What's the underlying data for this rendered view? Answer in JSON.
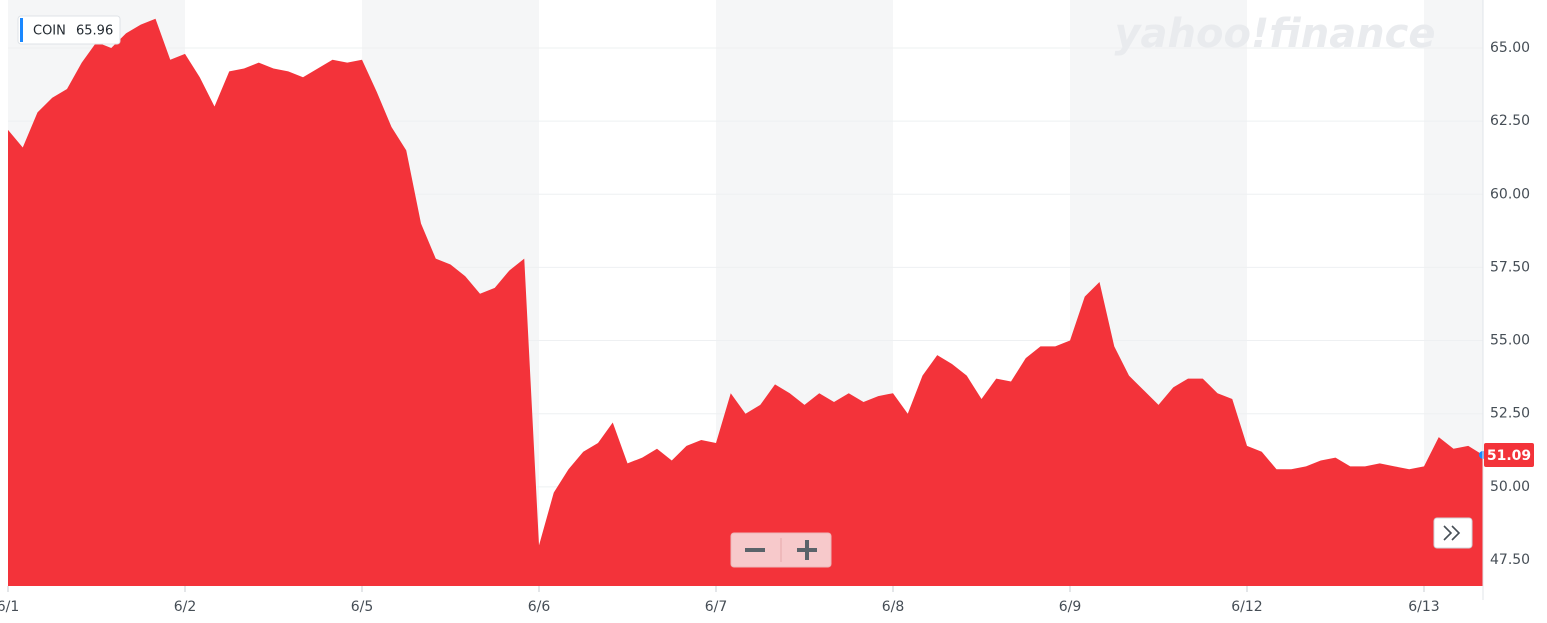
{
  "chart_data": {
    "type": "area",
    "legend": {
      "symbol": "COIN",
      "value": "65.96"
    },
    "watermark": "yahoo!finance",
    "last_price": "51.09",
    "color": "#f3333a",
    "series": [
      {
        "name": "COIN",
        "color": "#f3333a",
        "values": [
          62.2,
          61.6,
          62.8,
          63.3,
          63.6,
          64.5,
          65.2,
          65.0,
          65.5,
          65.8,
          66.0,
          64.6,
          64.8,
          64.0,
          63.0,
          64.2,
          64.3,
          64.5,
          64.3,
          64.2,
          64.0,
          64.3,
          64.6,
          64.5,
          64.6,
          63.5,
          62.3,
          61.5,
          59.0,
          57.8,
          57.6,
          57.2,
          56.6,
          56.8,
          57.4,
          57.8,
          48.0,
          49.8,
          50.6,
          51.2,
          51.5,
          52.2,
          50.8,
          51.0,
          51.3,
          50.9,
          51.4,
          51.6,
          51.5,
          53.2,
          52.5,
          52.8,
          53.5,
          53.2,
          52.8,
          53.2,
          52.9,
          53.2,
          52.9,
          53.1,
          53.2,
          52.5,
          53.8,
          54.5,
          54.2,
          53.8,
          53.0,
          53.7,
          53.6,
          54.4,
          54.8,
          54.8,
          55.0,
          56.5,
          57.0,
          54.8,
          53.8,
          53.3,
          52.8,
          53.4,
          53.7,
          53.7,
          53.2,
          53.0,
          51.4,
          51.2,
          50.6,
          50.6,
          50.7,
          50.9,
          51.0,
          50.7,
          50.7,
          50.8,
          50.7,
          50.6,
          50.7,
          51.7,
          51.3,
          51.4,
          51.09
        ]
      }
    ],
    "xlim": [
      0,
      100
    ],
    "xticks": [
      {
        "value": 0,
        "label": "6/1"
      },
      {
        "value": 12,
        "label": "6/2"
      },
      {
        "value": 24,
        "label": "6/5"
      },
      {
        "value": 36,
        "label": "6/6"
      },
      {
        "value": 48,
        "label": "6/7"
      },
      {
        "value": 60,
        "label": "6/8"
      },
      {
        "value": 72,
        "label": "6/9"
      },
      {
        "value": 84,
        "label": "6/12"
      },
      {
        "value": 96,
        "label": "6/13"
      }
    ],
    "ylim": [
      46.61,
      66.47
    ],
    "yticks": [
      {
        "value": 47.5,
        "label": "47.50"
      },
      {
        "value": 50,
        "label": "50.00"
      },
      {
        "value": 52.5,
        "label": "52.50"
      },
      {
        "value": 55,
        "label": "55.00"
      },
      {
        "value": 57.5,
        "label": "57.50"
      },
      {
        "value": 60,
        "label": "60.00"
      },
      {
        "value": 62.5,
        "label": "62.50"
      },
      {
        "value": 65,
        "label": "65.00"
      }
    ],
    "grid": true,
    "shade_alternate_days": true
  }
}
